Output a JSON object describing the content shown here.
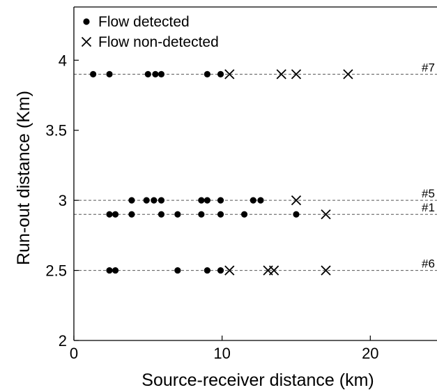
{
  "chart_data": {
    "type": "scatter",
    "xlabel": "Source-receiver distance (km)",
    "ylabel": "Run-out distance (Km)",
    "xlim": [
      0,
      24.5
    ],
    "ylim": [
      2,
      4.38
    ],
    "x_ticks": [
      0,
      10,
      20
    ],
    "x_tick_labels": [
      "0",
      "10",
      "20"
    ],
    "y_ticks": [
      2,
      2.5,
      3,
      3.5,
      4
    ],
    "y_tick_labels": [
      "2",
      "2.5",
      "3",
      "3.5",
      "4"
    ],
    "grid": false,
    "legend_position": "top-left",
    "series": [
      {
        "name": "Flow detected",
        "marker": "dot",
        "points": [
          [
            1.3,
            3.9
          ],
          [
            2.4,
            3.9
          ],
          [
            5,
            3.9
          ],
          [
            5.5,
            3.9
          ],
          [
            5.9,
            3.9
          ],
          [
            9,
            3.9
          ],
          [
            9.9,
            3.9
          ],
          [
            3.9,
            3.0
          ],
          [
            4.9,
            3.0
          ],
          [
            5.4,
            3.0
          ],
          [
            5.9,
            3.0
          ],
          [
            8.6,
            3.0
          ],
          [
            9,
            3.0
          ],
          [
            9.9,
            3.0
          ],
          [
            12.1,
            3.0
          ],
          [
            12.6,
            3.0
          ],
          [
            2.4,
            2.9
          ],
          [
            2.8,
            2.9
          ],
          [
            3.9,
            2.9
          ],
          [
            5.9,
            2.9
          ],
          [
            7,
            2.9
          ],
          [
            8.6,
            2.9
          ],
          [
            9.9,
            2.9
          ],
          [
            11.5,
            2.9
          ],
          [
            15,
            2.9
          ],
          [
            2.4,
            2.5
          ],
          [
            2.8,
            2.5
          ],
          [
            7,
            2.5
          ],
          [
            9,
            2.5
          ],
          [
            9.9,
            2.5
          ]
        ]
      },
      {
        "name": "Flow non-detected",
        "marker": "x",
        "points": [
          [
            10.5,
            3.9
          ],
          [
            14,
            3.9
          ],
          [
            15,
            3.9
          ],
          [
            18.5,
            3.9
          ],
          [
            15,
            3.0
          ],
          [
            17,
            2.9
          ],
          [
            10.5,
            2.5
          ],
          [
            13.1,
            2.5
          ],
          [
            13.5,
            2.5
          ],
          [
            17,
            2.5
          ]
        ]
      }
    ],
    "reference_lines": [
      {
        "y": 3.9,
        "label": "#7"
      },
      {
        "y": 3.0,
        "label": "#5"
      },
      {
        "y": 2.9,
        "label": "#1"
      },
      {
        "y": 2.5,
        "label": "#6"
      }
    ]
  }
}
